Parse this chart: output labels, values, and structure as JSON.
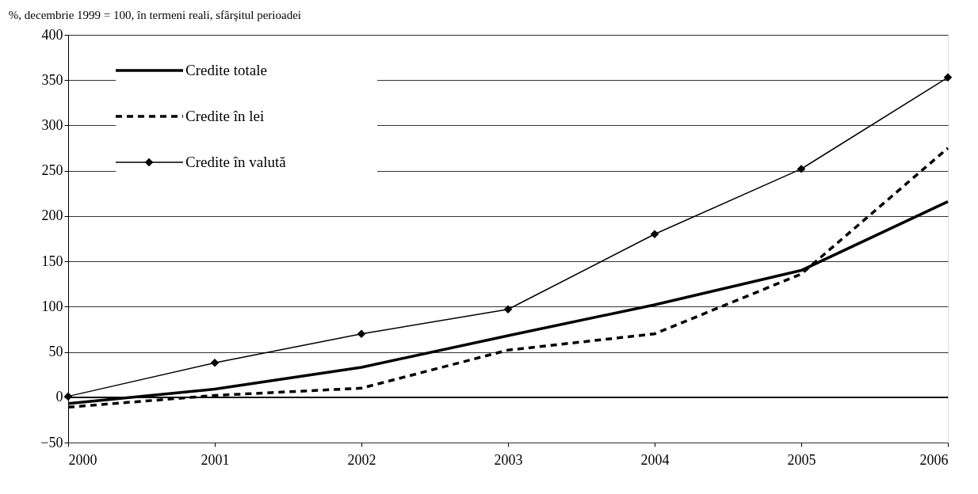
{
  "chart_data": {
    "type": "line",
    "ylabel": "%, decembrie 1999 = 100, în termeni reali, sfârşitul perioadei",
    "x": [
      2000,
      2001,
      2002,
      2003,
      2004,
      2005,
      2006
    ],
    "series": [
      {
        "name": "Credite totale",
        "color": "#000000",
        "line_style": "solid",
        "marker": "none",
        "values": [
          -7,
          9,
          33,
          68,
          102,
          140,
          216
        ]
      },
      {
        "name": "Credite în lei",
        "color": "#000000",
        "line_style": "dashed",
        "marker": "none",
        "values": [
          -11,
          2,
          10,
          52,
          70,
          136,
          275
        ]
      },
      {
        "name": "Credite în valută",
        "color": "#000000",
        "line_style": "solid",
        "marker": "diamond",
        "values": [
          1,
          38,
          70,
          97,
          180,
          252,
          353
        ]
      }
    ],
    "xlim": [
      2000,
      2006
    ],
    "xticks": [
      2000,
      2001,
      2002,
      2003,
      2004,
      2005,
      2006
    ],
    "ylim": [
      -50,
      400
    ],
    "yticks": [
      -50,
      0,
      50,
      100,
      150,
      200,
      250,
      300,
      350,
      400
    ],
    "grid": "y",
    "legend": "top left",
    "ref_lines": [
      {
        "axis": "y",
        "value": 0,
        "color": "#000000"
      }
    ]
  }
}
